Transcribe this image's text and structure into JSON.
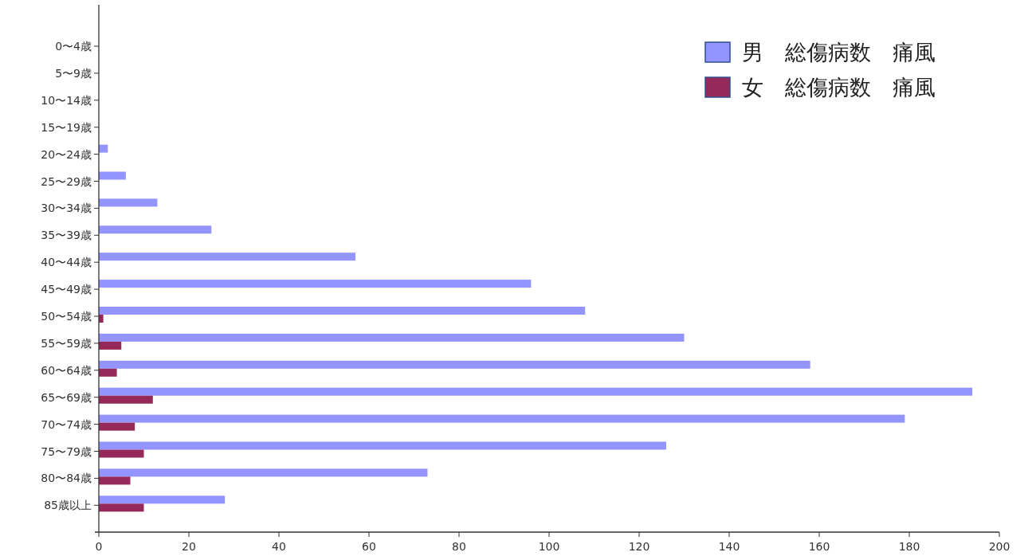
{
  "chart_data": {
    "type": "bar",
    "orientation": "horizontal",
    "categories": [
      "0〜4歳",
      "5〜9歳",
      "10〜14歳",
      "15〜19歳",
      "20〜24歳",
      "25〜29歳",
      "30〜34歳",
      "35〜39歳",
      "40〜44歳",
      "45〜49歳",
      "50〜54歳",
      "55〜59歳",
      "60〜64歳",
      "65〜69歳",
      "70〜74歳",
      "75〜79歳",
      "80〜84歳",
      "85歳以上"
    ],
    "series": [
      {
        "name": "男　総傷病数　痛風",
        "color": "#9494ff",
        "values": [
          0,
          0,
          0,
          0,
          2,
          6,
          13,
          25,
          57,
          96,
          108,
          130,
          158,
          194,
          179,
          126,
          73,
          28
        ]
      },
      {
        "name": "女　総傷病数　痛風",
        "color": "#952a5a",
        "values": [
          0,
          0,
          0,
          0,
          0,
          0,
          0,
          0,
          0,
          0,
          1,
          5,
          4,
          12,
          8,
          10,
          7,
          10
        ]
      }
    ],
    "xlim": [
      0,
      200
    ],
    "xticks": [
      0,
      20,
      40,
      60,
      80,
      100,
      120,
      140,
      160,
      180,
      200
    ],
    "legend": "top right",
    "grid": false
  }
}
